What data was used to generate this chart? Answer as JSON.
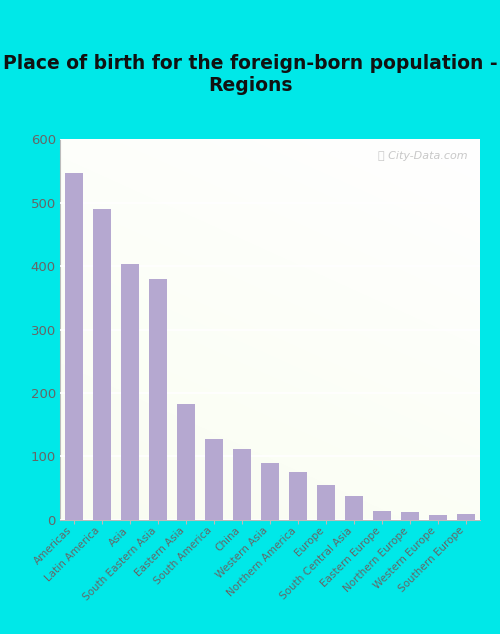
{
  "title": "Place of birth for the foreign-born population -\nRegions",
  "categories": [
    "Americas",
    "Latin America",
    "Asia",
    "South Eastern Asia",
    "Eastern Asia",
    "South America",
    "China",
    "Western Asia",
    "Northern America",
    "Europe",
    "South Central Asia",
    "Eastern Europe",
    "Northern Europe",
    "Western Europe",
    "Southern Europe"
  ],
  "values": [
    547,
    490,
    403,
    380,
    183,
    127,
    112,
    90,
    75,
    55,
    37,
    14,
    13,
    8,
    10
  ],
  "bar_color": "#b5a8d0",
  "title_fontsize": 13.5,
  "tick_fontsize": 7.5,
  "ytick_fontsize": 9.5,
  "ylim": [
    0,
    600
  ],
  "yticks": [
    0,
    100,
    200,
    300,
    400,
    500,
    600
  ],
  "watermark": "ⓘ City-Data.com",
  "outer_bg": "#00e8e8",
  "grid_color": "#ffffff",
  "spine_color": "#bbbbbb",
  "tick_color": "#666666"
}
